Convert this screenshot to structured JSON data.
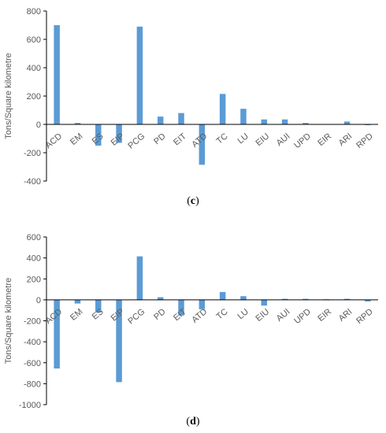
{
  "chart_data": [
    {
      "type": "bar",
      "panel": "c",
      "ylabel": "Tons/Square kilometre",
      "ylim": [
        -400,
        800
      ],
      "yticks": [
        -400,
        -200,
        0,
        200,
        400,
        600,
        800
      ],
      "categories": [
        "ACD",
        "EM",
        "ES",
        "EIP",
        "PCG",
        "PD",
        "EIT",
        "ATD",
        "TC",
        "LU",
        "EIU",
        "AUI",
        "UPD",
        "EIR",
        "ARI",
        "RPD"
      ],
      "values": [
        700,
        10,
        -150,
        -130,
        690,
        55,
        80,
        -285,
        215,
        110,
        35,
        35,
        10,
        0,
        20,
        -5
      ],
      "color": "#5b9bd5",
      "grid": false,
      "legend": "none"
    },
    {
      "type": "bar",
      "panel": "d",
      "ylabel": "Tons/Square kilometre",
      "ylim": [
        -1000,
        600
      ],
      "yticks": [
        -1000,
        -800,
        -600,
        -400,
        -200,
        0,
        200,
        400,
        600
      ],
      "categories": [
        "ACD",
        "EM",
        "ES",
        "EIP",
        "PCG",
        "PD",
        "EIT",
        "ATD",
        "TC",
        "LU",
        "EIU",
        "AUI",
        "UPD",
        "EIR",
        "ARI",
        "RPD"
      ],
      "values": [
        -655,
        -35,
        -120,
        -785,
        415,
        25,
        -150,
        -90,
        75,
        35,
        -55,
        10,
        10,
        5,
        10,
        -15
      ],
      "color": "#5b9bd5",
      "grid": false,
      "legend": "none"
    }
  ],
  "captions": {
    "c_open": "(",
    "c_letter": "c",
    "c_close": ")",
    "d_open": "(",
    "d_letter": "d",
    "d_close": ")"
  }
}
